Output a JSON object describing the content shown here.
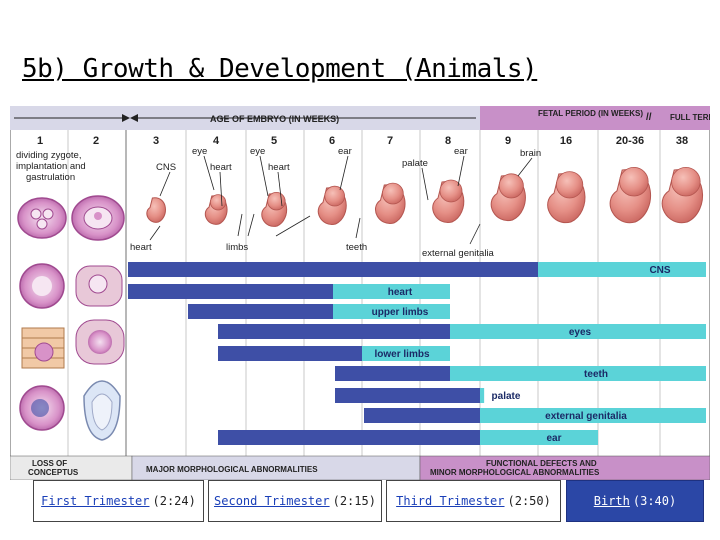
{
  "title": "5b) Growth & Development (Animals)",
  "figure": {
    "header_left": "AGE OF EMBRYO (IN WEEKS)",
    "header_right": "FETAL PERIOD (IN WEEKS)",
    "header_full_term": "FULL TERM",
    "header_break": "//",
    "weeks": [
      "1",
      "2",
      "3",
      "4",
      "5",
      "6",
      "7",
      "8",
      "9",
      "16",
      "20-36",
      "38"
    ],
    "stage_labels": {
      "early": "dividing zygote, implantation and gastrulation",
      "cns": "CNS",
      "eye4": "eye",
      "heart4": "heart",
      "eye5": "eye",
      "heart5": "heart",
      "ear6": "ear",
      "palate": "palate",
      "ear8": "ear",
      "brain": "brain",
      "heart_low": "heart",
      "limbs": "limbs",
      "teeth_low": "teeth",
      "ext_gen": "external genitalia"
    },
    "bottom_left": "LOSS OF CONCEPTUS",
    "bottom_mid": "MAJOR MORPHOLOGICAL ABNORMALITIES",
    "bottom_right": "FUNCTIONAL DEFECTS AND MINOR MORPHOLOGICAL ABNORMALITIES",
    "colors": {
      "major": "#3e4fa6",
      "minor": "#5bd3d8",
      "header_left_bg": "#d8d8e8",
      "header_right_bg": "#c890c8",
      "bottom_right_bg": "#c890c8"
    }
  },
  "chart_data": {
    "type": "timeline",
    "periods": [
      "CNS",
      "heart",
      "upper limbs",
      "eyes",
      "lower limbs",
      "teeth",
      "palate",
      "external genitalia",
      "ear"
    ],
    "unit": "weeks",
    "series": [
      {
        "name": "CNS",
        "major": [
          3,
          16
        ],
        "minor": [
          16,
          38
        ]
      },
      {
        "name": "heart",
        "major": [
          3,
          6.5
        ],
        "minor": [
          6.5,
          8.5
        ]
      },
      {
        "name": "upper limbs",
        "major": [
          4,
          6.5
        ],
        "minor": [
          6.5,
          8.5
        ]
      },
      {
        "name": "eyes",
        "major": [
          4.5,
          8.5
        ],
        "minor": [
          8.5,
          38
        ]
      },
      {
        "name": "lower limbs",
        "major": [
          4.5,
          7
        ],
        "minor": [
          7,
          8.5
        ]
      },
      {
        "name": "teeth",
        "major": [
          6.5,
          8.5
        ],
        "minor": [
          8.5,
          38
        ]
      },
      {
        "name": "palate",
        "major": [
          6.5,
          9
        ],
        "minor": [
          9,
          9.5
        ]
      },
      {
        "name": "external genitalia",
        "major": [
          7,
          9
        ],
        "minor": [
          9,
          38
        ]
      },
      {
        "name": "ear",
        "major": [
          4.5,
          9
        ],
        "minor": [
          9,
          20
        ]
      }
    ]
  },
  "buttons": [
    {
      "label": "First Trimester",
      "time": "(2:24)"
    },
    {
      "label": "Second Trimester",
      "time": "(2:15)"
    },
    {
      "label": "Third Trimester",
      "time": "(2:50)"
    },
    {
      "label": "Birth",
      "time": "(3:40)"
    }
  ]
}
